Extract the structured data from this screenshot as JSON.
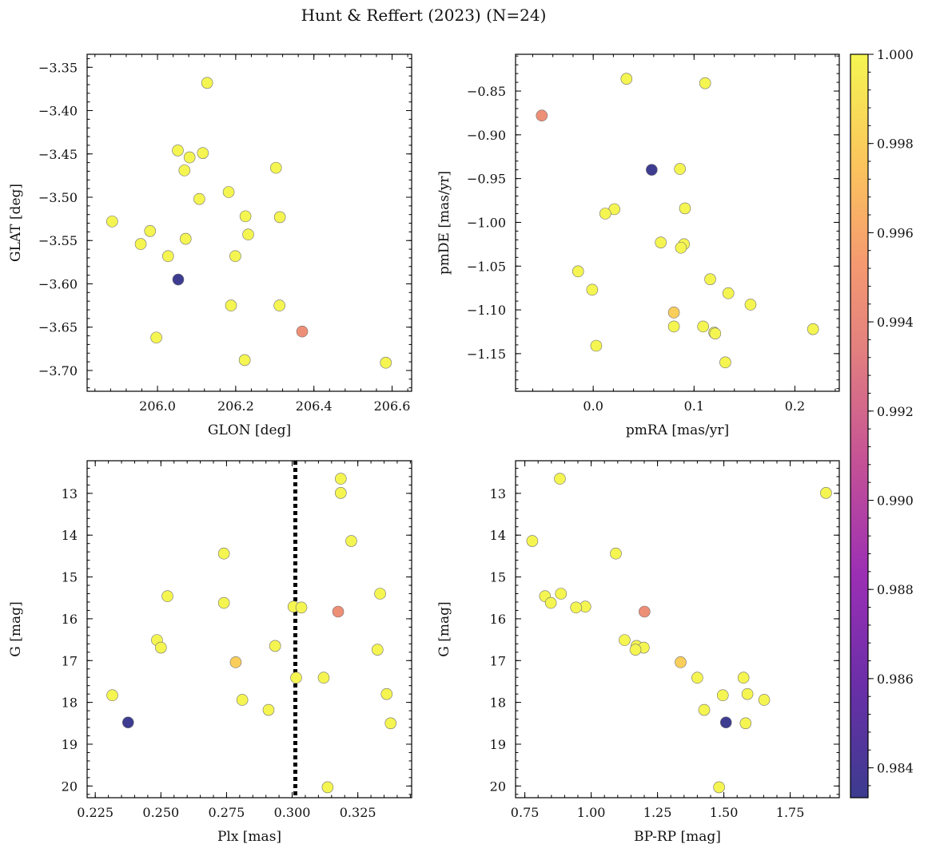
{
  "title": "Hunt & Reffert (2023) (N=24)",
  "colorbar": {
    "range": [
      0.98333,
      1.0
    ],
    "ticks": [
      0.984,
      0.986,
      0.988,
      0.99,
      0.992,
      0.994,
      0.996,
      0.998,
      1.0
    ],
    "colormap": "plasma"
  },
  "chart_data": [
    {
      "type": "scatter",
      "xlabel": "GLON [deg]",
      "ylabel": "GLAT [deg]",
      "xlim": [
        205.82,
        206.65
      ],
      "ylim": [
        -3.724,
        -3.335
      ],
      "xticks": [
        206.0,
        206.2,
        206.4,
        206.6
      ],
      "yticks": [
        -3.7,
        -3.65,
        -3.6,
        -3.55,
        -3.5,
        -3.45,
        -3.4,
        -3.35
      ],
      "inverted_y": false,
      "points": [
        {
          "x": 206.127,
          "y": -3.368,
          "c": 1.0
        },
        {
          "x": 206.052,
          "y": -3.446,
          "c": 1.0
        },
        {
          "x": 206.116,
          "y": -3.449,
          "c": 1.0
        },
        {
          "x": 206.082,
          "y": -3.454,
          "c": 1.0
        },
        {
          "x": 206.069,
          "y": -3.469,
          "c": 1.0
        },
        {
          "x": 206.303,
          "y": -3.466,
          "c": 1.0
        },
        {
          "x": 206.182,
          "y": -3.494,
          "c": 1.0
        },
        {
          "x": 206.107,
          "y": -3.502,
          "c": 1.0
        },
        {
          "x": 206.225,
          "y": -3.522,
          "c": 1.0
        },
        {
          "x": 206.313,
          "y": -3.523,
          "c": 1.0
        },
        {
          "x": 205.884,
          "y": -3.528,
          "c": 1.0
        },
        {
          "x": 205.981,
          "y": -3.539,
          "c": 1.0
        },
        {
          "x": 206.232,
          "y": -3.543,
          "c": 1.0
        },
        {
          "x": 206.072,
          "y": -3.548,
          "c": 1.0
        },
        {
          "x": 205.957,
          "y": -3.554,
          "c": 1.0
        },
        {
          "x": 206.027,
          "y": -3.568,
          "c": 1.0
        },
        {
          "x": 206.199,
          "y": -3.568,
          "c": 1.0
        },
        {
          "x": 206.053,
          "y": -3.595,
          "c": 0.9834
        },
        {
          "x": 206.188,
          "y": -3.625,
          "c": 1.0
        },
        {
          "x": 206.312,
          "y": -3.625,
          "c": 1.0
        },
        {
          "x": 206.37,
          "y": -3.655,
          "c": 0.9945
        },
        {
          "x": 205.997,
          "y": -3.662,
          "c": 1.0
        },
        {
          "x": 206.223,
          "y": -3.688,
          "c": 1.0
        },
        {
          "x": 206.584,
          "y": -3.691,
          "c": 1.0
        }
      ]
    },
    {
      "type": "scatter",
      "xlabel": "pmRA [mas/yr]",
      "ylabel": "pmDE [mas/yr]",
      "xlim": [
        -0.077,
        0.244
      ],
      "ylim": [
        -1.193,
        -0.808
      ],
      "xticks": [
        0.0,
        0.1,
        0.2
      ],
      "yticks": [
        -1.15,
        -1.1,
        -1.05,
        -1.0,
        -0.95,
        -0.9,
        -0.85
      ],
      "inverted_y": false,
      "points": [
        {
          "x": 0.033,
          "y": -0.836,
          "c": 1.0
        },
        {
          "x": 0.111,
          "y": -0.841,
          "c": 1.0
        },
        {
          "x": -0.051,
          "y": -0.878,
          "c": 0.9945
        },
        {
          "x": 0.058,
          "y": -0.94,
          "c": 0.9834
        },
        {
          "x": 0.086,
          "y": -0.939,
          "c": 1.0
        },
        {
          "x": 0.021,
          "y": -0.985,
          "c": 1.0
        },
        {
          "x": 0.091,
          "y": -0.984,
          "c": 1.0
        },
        {
          "x": 0.012,
          "y": -0.99,
          "c": 1.0
        },
        {
          "x": 0.067,
          "y": -1.023,
          "c": 1.0
        },
        {
          "x": 0.09,
          "y": -1.025,
          "c": 1.0
        },
        {
          "x": 0.087,
          "y": -1.029,
          "c": 1.0
        },
        {
          "x": -0.015,
          "y": -1.056,
          "c": 1.0
        },
        {
          "x": 0.116,
          "y": -1.065,
          "c": 1.0
        },
        {
          "x": -0.001,
          "y": -1.077,
          "c": 1.0
        },
        {
          "x": 0.134,
          "y": -1.081,
          "c": 1.0
        },
        {
          "x": 0.156,
          "y": -1.094,
          "c": 1.0
        },
        {
          "x": 0.08,
          "y": -1.103,
          "c": 0.998
        },
        {
          "x": 0.08,
          "y": -1.119,
          "c": 1.0
        },
        {
          "x": 0.109,
          "y": -1.119,
          "c": 1.0
        },
        {
          "x": 0.218,
          "y": -1.122,
          "c": 1.0
        },
        {
          "x": 0.12,
          "y": -1.126,
          "c": 1.0
        },
        {
          "x": 0.121,
          "y": -1.127,
          "c": 1.0
        },
        {
          "x": 0.003,
          "y": -1.141,
          "c": 1.0
        },
        {
          "x": 0.131,
          "y": -1.16,
          "c": 1.0
        }
      ]
    },
    {
      "type": "scatter",
      "xlabel": "Plx [mas]",
      "ylabel": "G [mag]",
      "xlim": [
        0.2219,
        0.3455
      ],
      "ylim": [
        12.22,
        20.28
      ],
      "xticks": [
        0.225,
        0.25,
        0.275,
        0.3,
        0.325
      ],
      "yticks": [
        13,
        14,
        15,
        16,
        17,
        18,
        19,
        20
      ],
      "inverted_y": true,
      "vline": {
        "x": 0.3012,
        "style": "dotted"
      },
      "points": [
        {
          "x": 0.3185,
          "y": 12.65,
          "c": 1.0
        },
        {
          "x": 0.3185,
          "y": 12.99,
          "c": 1.0
        },
        {
          "x": 0.3225,
          "y": 14.14,
          "c": 1.0
        },
        {
          "x": 0.274,
          "y": 14.44,
          "c": 1.0
        },
        {
          "x": 0.3335,
          "y": 15.4,
          "c": 1.0
        },
        {
          "x": 0.2525,
          "y": 15.46,
          "c": 1.0
        },
        {
          "x": 0.274,
          "y": 15.62,
          "c": 1.0
        },
        {
          "x": 0.3005,
          "y": 15.71,
          "c": 1.0
        },
        {
          "x": 0.3035,
          "y": 15.73,
          "c": 1.0
        },
        {
          "x": 0.3175,
          "y": 15.83,
          "c": 0.9945
        },
        {
          "x": 0.2485,
          "y": 16.51,
          "c": 1.0
        },
        {
          "x": 0.2935,
          "y": 16.65,
          "c": 1.0
        },
        {
          "x": 0.25,
          "y": 16.69,
          "c": 1.0
        },
        {
          "x": 0.3325,
          "y": 16.74,
          "c": 1.0
        },
        {
          "x": 0.2785,
          "y": 17.04,
          "c": 0.998
        },
        {
          "x": 0.3015,
          "y": 17.41,
          "c": 1.0
        },
        {
          "x": 0.312,
          "y": 17.41,
          "c": 1.0
        },
        {
          "x": 0.336,
          "y": 17.8,
          "c": 1.0
        },
        {
          "x": 0.2315,
          "y": 17.83,
          "c": 1.0
        },
        {
          "x": 0.281,
          "y": 17.94,
          "c": 1.0
        },
        {
          "x": 0.291,
          "y": 18.18,
          "c": 1.0
        },
        {
          "x": 0.2375,
          "y": 18.48,
          "c": 0.9834
        },
        {
          "x": 0.3375,
          "y": 18.5,
          "c": 1.0
        },
        {
          "x": 0.3135,
          "y": 20.03,
          "c": 1.0
        }
      ]
    },
    {
      "type": "scatter",
      "xlabel": "BP-RP [mag]",
      "ylabel": "G [mag]",
      "xlim": [
        0.715,
        1.935
      ],
      "ylim": [
        12.22,
        20.28
      ],
      "xticks": [
        0.75,
        1.0,
        1.25,
        1.5,
        1.75
      ],
      "yticks": [
        13,
        14,
        15,
        16,
        17,
        18,
        19,
        20
      ],
      "inverted_y": true,
      "points": [
        {
          "x": 0.882,
          "y": 12.65,
          "c": 1.0
        },
        {
          "x": 1.885,
          "y": 12.99,
          "c": 1.0
        },
        {
          "x": 0.778,
          "y": 14.14,
          "c": 1.0
        },
        {
          "x": 1.093,
          "y": 14.44,
          "c": 1.0
        },
        {
          "x": 0.886,
          "y": 15.4,
          "c": 1.0
        },
        {
          "x": 0.826,
          "y": 15.46,
          "c": 1.0
        },
        {
          "x": 0.848,
          "y": 15.62,
          "c": 1.0
        },
        {
          "x": 0.978,
          "y": 15.71,
          "c": 1.0
        },
        {
          "x": 0.943,
          "y": 15.73,
          "c": 1.0
        },
        {
          "x": 1.201,
          "y": 15.83,
          "c": 0.9945
        },
        {
          "x": 1.126,
          "y": 16.51,
          "c": 1.0
        },
        {
          "x": 1.171,
          "y": 16.65,
          "c": 1.0
        },
        {
          "x": 1.198,
          "y": 16.69,
          "c": 1.0
        },
        {
          "x": 1.167,
          "y": 16.74,
          "c": 1.0
        },
        {
          "x": 1.337,
          "y": 17.04,
          "c": 0.998
        },
        {
          "x": 1.4,
          "y": 17.41,
          "c": 1.0
        },
        {
          "x": 1.574,
          "y": 17.41,
          "c": 1.0
        },
        {
          "x": 1.589,
          "y": 17.8,
          "c": 1.0
        },
        {
          "x": 1.496,
          "y": 17.83,
          "c": 1.0
        },
        {
          "x": 1.652,
          "y": 17.94,
          "c": 1.0
        },
        {
          "x": 1.426,
          "y": 18.18,
          "c": 1.0
        },
        {
          "x": 1.508,
          "y": 18.48,
          "c": 0.9834
        },
        {
          "x": 1.582,
          "y": 18.5,
          "c": 1.0
        },
        {
          "x": 1.482,
          "y": 20.03,
          "c": 1.0
        }
      ]
    }
  ]
}
